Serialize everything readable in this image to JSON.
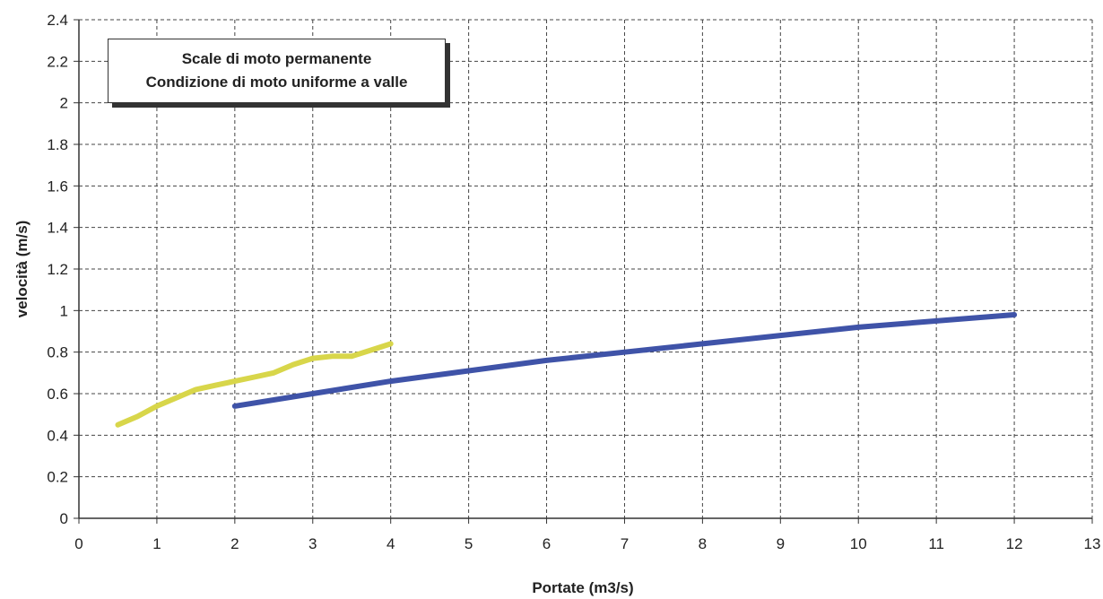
{
  "chart_data": {
    "type": "line",
    "title_lines": [
      "Scale di moto permanente",
      "Condizione di moto uniforme a valle"
    ],
    "xlabel": "Portate (m3/s)",
    "ylabel": "velocità (m/s)",
    "xlim": [
      0,
      13
    ],
    "ylim": [
      0,
      2.4
    ],
    "x_ticks": [
      "0",
      "1",
      "2",
      "3",
      "4",
      "5",
      "6",
      "7",
      "8",
      "9",
      "10",
      "11",
      "12",
      "13"
    ],
    "y_ticks": [
      "0",
      "0.2",
      "0.4",
      "0.6",
      "0.8",
      "1",
      "1.2",
      "1.4",
      "1.6",
      "1.8",
      "2",
      "2.2",
      "2.4"
    ],
    "grid": true,
    "series": [
      {
        "color": "#d8d64a",
        "x": [
          0.5,
          0.75,
          1.0,
          1.25,
          1.5,
          1.75,
          2.0,
          2.25,
          2.5,
          2.75,
          3.0,
          3.25,
          3.5,
          3.75,
          4.0
        ],
        "y": [
          0.45,
          0.49,
          0.54,
          0.58,
          0.62,
          0.64,
          0.66,
          0.68,
          0.7,
          0.74,
          0.77,
          0.78,
          0.78,
          0.81,
          0.84
        ]
      },
      {
        "color": "#3f53a8",
        "x": [
          2,
          3,
          4,
          5,
          6,
          7,
          8,
          9,
          10,
          11,
          12
        ],
        "y": [
          0.54,
          0.6,
          0.66,
          0.71,
          0.76,
          0.8,
          0.84,
          0.88,
          0.92,
          0.95,
          0.98
        ]
      }
    ]
  }
}
